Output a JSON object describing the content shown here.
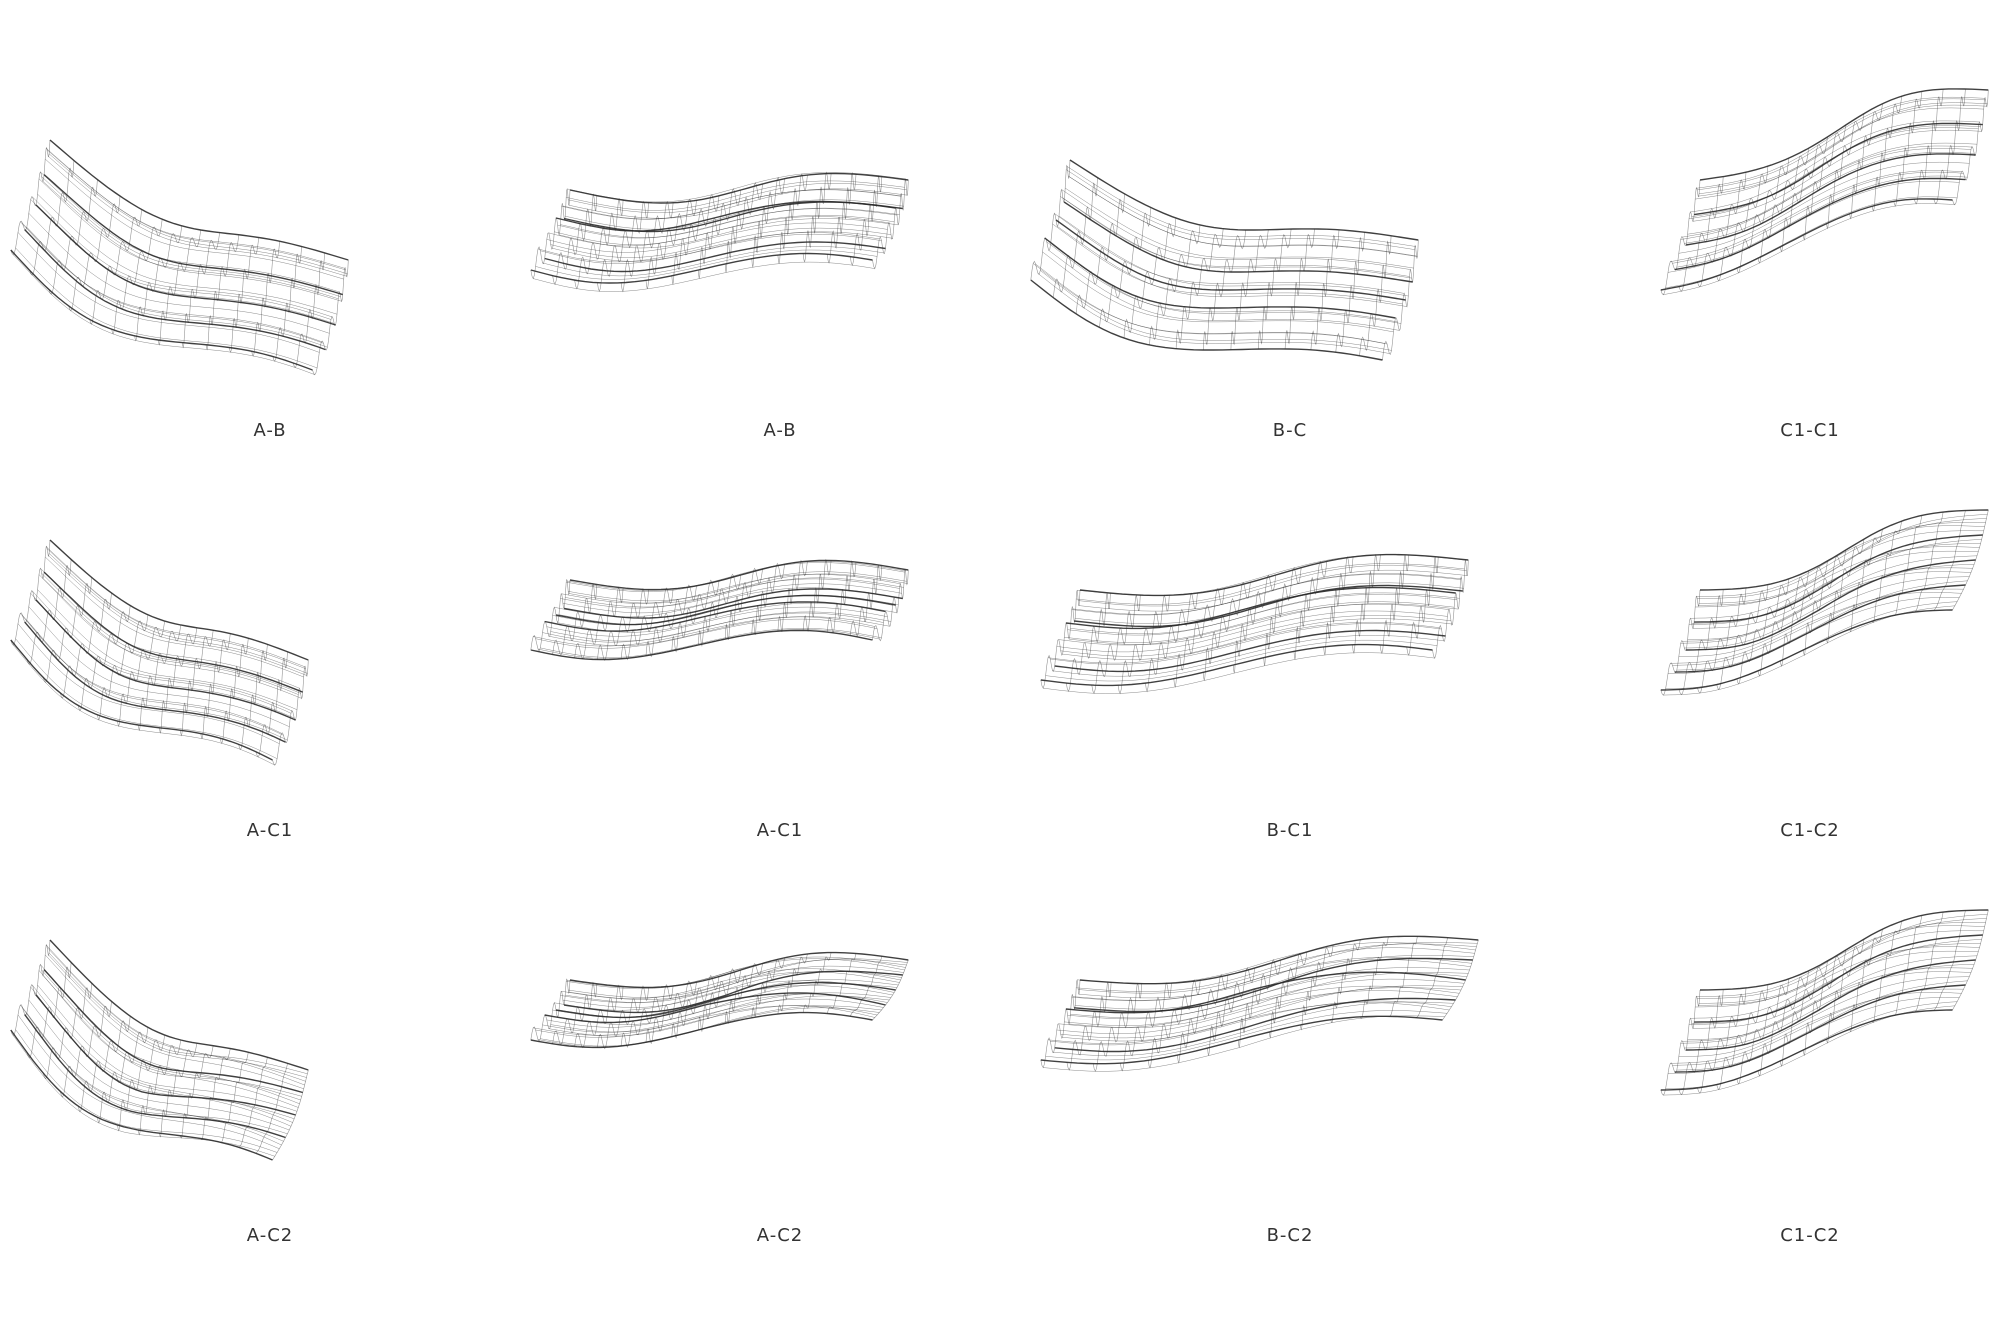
{
  "colors": {
    "background": "#ffffff",
    "wire": "#2b2b2b",
    "label": "#333333"
  },
  "panels": [
    {
      "id": "r1c1",
      "label": "A-B",
      "pattern": "ribbed"
    },
    {
      "id": "r1c2",
      "label": "A-B",
      "pattern": "ribbed"
    },
    {
      "id": "r1c3",
      "label": "B-C",
      "pattern": "ribbed"
    },
    {
      "id": "r1c4",
      "label": "C1-C1",
      "pattern": "ribbed"
    },
    {
      "id": "r2c1",
      "label": "A-C1",
      "pattern": "ribbed"
    },
    {
      "id": "r2c2",
      "label": "A-C1",
      "pattern": "ribbed"
    },
    {
      "id": "r2c3",
      "label": "B-C1",
      "pattern": "ribbed"
    },
    {
      "id": "r2c4",
      "label": "C1-C2",
      "pattern": "ribbed-to-smooth"
    },
    {
      "id": "r3c1",
      "label": "A-C2",
      "pattern": "ribbed-to-smooth"
    },
    {
      "id": "r3c2",
      "label": "A-C2",
      "pattern": "ribbed-to-smooth"
    },
    {
      "id": "r3c3",
      "label": "B-C2",
      "pattern": "ribbed-to-smooth"
    },
    {
      "id": "r3c4",
      "label": "C1-C2",
      "pattern": "ribbed-to-smooth"
    }
  ]
}
